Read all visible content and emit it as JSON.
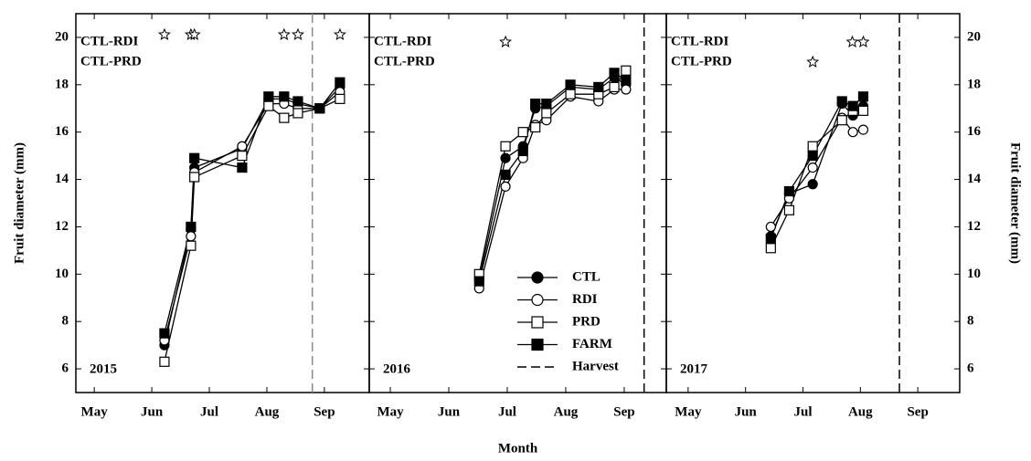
{
  "chart_data": [
    {
      "type": "line",
      "title": "2015",
      "y_label": "Fruit diameter (mm)",
      "xlim": [
        4.68,
        9.78
      ],
      "xticks": [
        {
          "value": 5,
          "label": "May"
        },
        {
          "value": 6,
          "label": "Jun"
        },
        {
          "value": 7,
          "label": "Jul"
        },
        {
          "value": 8,
          "label": "Aug"
        },
        {
          "value": 9,
          "label": "Sep"
        }
      ],
      "ylim": [
        5,
        21
      ],
      "yticks": [
        6,
        8,
        10,
        12,
        14,
        16,
        18,
        20
      ],
      "x": [
        6.22,
        6.68,
        6.74,
        7.57,
        8.03,
        8.3,
        8.54,
        8.92,
        9.27
      ],
      "series": [
        {
          "name": "CTL",
          "marker": "circle",
          "fill": "#000000",
          "values": [
            7.0,
            11.9,
            14.5,
            15.3,
            17.4,
            17.4,
            17.2,
            17.0,
            17.9
          ]
        },
        {
          "name": "RDI",
          "marker": "circle",
          "fill": "#ffffff",
          "values": [
            7.2,
            11.6,
            14.3,
            15.4,
            17.2,
            17.2,
            17.0,
            17.0,
            17.7
          ]
        },
        {
          "name": "PRD",
          "marker": "square",
          "fill": "#ffffff",
          "values": [
            6.3,
            11.2,
            14.1,
            15.0,
            17.1,
            16.6,
            16.8,
            17.0,
            17.4
          ]
        },
        {
          "name": "FARM",
          "marker": "square",
          "fill": "#000000",
          "values": [
            7.5,
            12.0,
            14.9,
            14.5,
            17.5,
            17.5,
            17.3,
            17.0,
            18.1
          ]
        }
      ],
      "harvest": 8.79,
      "significance": [
        {
          "label": "CTL-RDI",
          "x": [
            6.22,
            6.68,
            6.74,
            8.3,
            8.54,
            9.27
          ]
        },
        {
          "label": "CTL-PRD",
          "x": []
        }
      ]
    },
    {
      "type": "line",
      "title": "2016",
      "x_label": "Month",
      "harvest_label": "Harvest",
      "xlim": [
        4.64,
        9.72
      ],
      "xticks": [
        {
          "value": 5,
          "label": "May"
        },
        {
          "value": 6,
          "label": "Jun"
        },
        {
          "value": 7,
          "label": "Jul"
        },
        {
          "value": 8,
          "label": "Aug"
        },
        {
          "value": 9,
          "label": "Sep"
        }
      ],
      "ylim": [
        5,
        21
      ],
      "yticks": [
        6,
        8,
        10,
        12,
        14,
        16,
        18,
        20
      ],
      "x": [
        6.52,
        6.97,
        7.27,
        7.48,
        7.67,
        8.08,
        8.56,
        8.83,
        9.03
      ],
      "series": [
        {
          "name": "CTL",
          "marker": "circle",
          "fill": "#000000",
          "values": [
            9.8,
            14.9,
            15.4,
            17.0,
            17.1,
            17.9,
            17.8,
            18.3,
            18.0
          ]
        },
        {
          "name": "RDI",
          "marker": "circle",
          "fill": "#ffffff",
          "values": [
            9.4,
            13.7,
            14.9,
            16.3,
            16.5,
            17.5,
            17.3,
            17.8,
            17.8
          ]
        },
        {
          "name": "PRD",
          "marker": "square",
          "fill": "#ffffff",
          "values": [
            10.0,
            15.4,
            16.0,
            16.2,
            16.8,
            17.6,
            17.6,
            17.9,
            18.6
          ]
        },
        {
          "name": "FARM",
          "marker": "square",
          "fill": "#000000",
          "values": [
            9.7,
            14.2,
            15.2,
            17.2,
            17.2,
            18.0,
            17.9,
            18.5,
            18.2
          ]
        }
      ],
      "harvest": 9.34,
      "significance": [
        {
          "label": "CTL-RDI",
          "x": [
            6.97
          ]
        },
        {
          "label": "CTL-PRD",
          "x": []
        }
      ]
    },
    {
      "type": "line",
      "title": "2017",
      "y2_label": "Fruit diameter (mm)",
      "xlim": [
        4.62,
        9.73
      ],
      "xticks": [
        {
          "value": 5,
          "label": "May"
        },
        {
          "value": 6,
          "label": "Jun"
        },
        {
          "value": 7,
          "label": "Jul"
        },
        {
          "value": 8,
          "label": "Aug"
        },
        {
          "value": 9,
          "label": "Sep"
        }
      ],
      "ylim": [
        5,
        21
      ],
      "yticks": [
        6,
        8,
        10,
        12,
        14,
        16,
        18,
        20
      ],
      "x": [
        6.44,
        6.76,
        7.17,
        7.68,
        7.87,
        8.05
      ],
      "series": [
        {
          "name": "CTL",
          "marker": "circle",
          "fill": "#000000",
          "values": [
            11.6,
            13.4,
            13.8,
            17.2,
            16.7,
            17.1
          ]
        },
        {
          "name": "RDI",
          "marker": "circle",
          "fill": "#ffffff",
          "values": [
            12.0,
            13.2,
            14.5,
            16.6,
            16.0,
            16.1
          ]
        },
        {
          "name": "PRD",
          "marker": "square",
          "fill": "#ffffff",
          "values": [
            11.1,
            12.7,
            15.4,
            16.5,
            16.9,
            16.9
          ]
        },
        {
          "name": "FARM",
          "marker": "square",
          "fill": "#000000",
          "values": [
            11.5,
            13.5,
            15.0,
            17.3,
            17.1,
            17.5
          ]
        }
      ],
      "harvest": 8.68,
      "significance": [
        {
          "label": "CTL-RDI",
          "x": [
            7.86,
            8.05
          ]
        },
        {
          "label": "CTL-PRD",
          "x": [
            7.17
          ]
        }
      ]
    }
  ]
}
